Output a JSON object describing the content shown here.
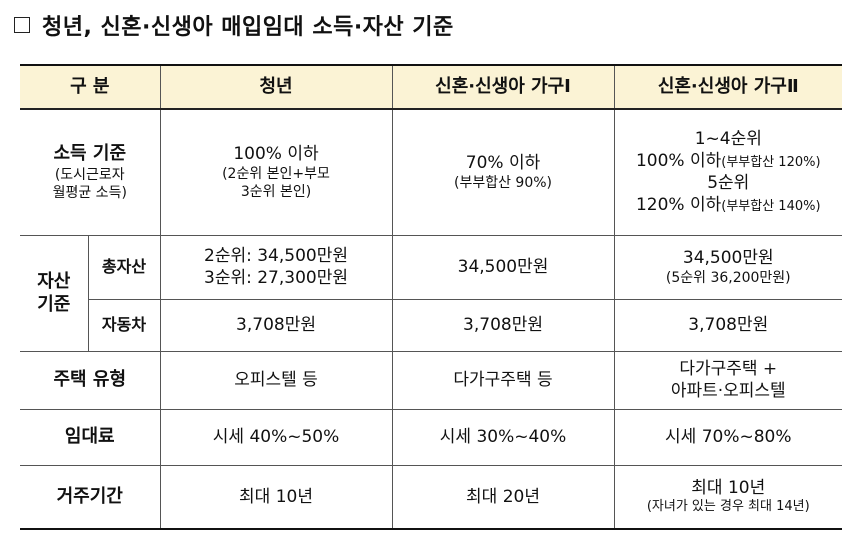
{
  "title": "청년, 신혼·신생아 매입임대 소득·자산 기준",
  "headers": {
    "category": "구 분",
    "youth": "청년",
    "newlywed1": "신혼·신생아 가구Ⅰ",
    "newlywed2": "신혼·신생아 가구Ⅱ"
  },
  "income": {
    "label": "소득 기준",
    "label_sub1": "(도시근로자",
    "label_sub2": "월평균 소득)",
    "youth_main": "100% 이하",
    "youth_sub1": "(2순위 본인+부모",
    "youth_sub2": "3순위 본인)",
    "n1_main": "70% 이하",
    "n1_sub": "(부부합산 90%)",
    "n2_line1": "1~4순위",
    "n2_line2_main": "100% 이하",
    "n2_line2_sub": "(부부합산 120%)",
    "n2_line3": "5순위",
    "n2_line4_main": "120% 이하",
    "n2_line4_sub": "(부부합산 140%)"
  },
  "assets": {
    "label_line1": "자산",
    "label_line2": "기준",
    "total": {
      "label": "총자산",
      "youth_line1": "2순위: 34,500만원",
      "youth_line2": "3순위: 27,300만원",
      "n1": "34,500만원",
      "n2_main": "34,500만원",
      "n2_sub": "(5순위 36,200만원)"
    },
    "car": {
      "label": "자동차",
      "youth": "3,708만원",
      "n1": "3,708만원",
      "n2": "3,708만원"
    }
  },
  "housing": {
    "label": "주택 유형",
    "youth": "오피스텔 등",
    "n1": "다가구주택 등",
    "n2_line1": "다가구주택 +",
    "n2_line2": "아파트·오피스텔"
  },
  "rent": {
    "label": "임대료",
    "youth": "시세 40%~50%",
    "n1": "시세 30%~40%",
    "n2": "시세 70%~80%"
  },
  "period": {
    "label": "거주기간",
    "youth": "최대 10년",
    "n1": "최대 20년",
    "n2_main": "최대 10년",
    "n2_sub": "(자녀가 있는 경우 최대 14년)"
  }
}
